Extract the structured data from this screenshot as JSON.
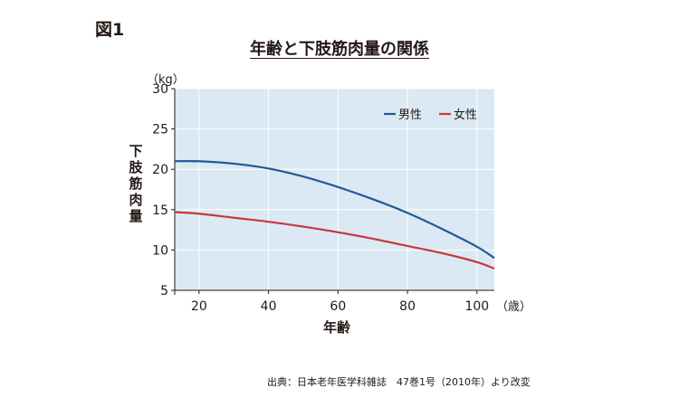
{
  "figure_label": "図1",
  "source_note": "出典：日本老年医学科雑誌　47巻1号（2010年）より改変",
  "chart_data": {
    "type": "line",
    "title": "年齢と下肢筋肉量の関係",
    "xlabel": "年齢",
    "ylabel": "下肢筋肉量",
    "y_unit": "（kg）",
    "x_unit": "（歳）",
    "xlim": [
      13,
      105
    ],
    "ylim": [
      5,
      30
    ],
    "x_ticks": [
      20,
      40,
      60,
      80,
      100
    ],
    "y_ticks": [
      5,
      10,
      15,
      20,
      25,
      30
    ],
    "grid": true,
    "legend_position": "top-right",
    "series": [
      {
        "name": "男性",
        "color": "#1f5a96",
        "x": [
          13,
          20,
          30,
          40,
          50,
          60,
          70,
          80,
          90,
          100,
          105
        ],
        "y": [
          21.0,
          21.0,
          20.7,
          20.1,
          19.1,
          17.8,
          16.3,
          14.6,
          12.6,
          10.4,
          9.0
        ]
      },
      {
        "name": "女性",
        "color": "#c8383c",
        "x": [
          13,
          20,
          30,
          40,
          50,
          60,
          70,
          80,
          90,
          100,
          105
        ],
        "y": [
          14.7,
          14.5,
          14.0,
          13.5,
          12.9,
          12.2,
          11.4,
          10.5,
          9.6,
          8.5,
          7.7
        ]
      }
    ]
  }
}
